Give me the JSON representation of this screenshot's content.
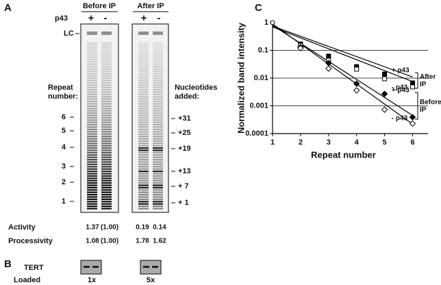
{
  "panel_a": {
    "label": "A",
    "before_ip": "Before IP",
    "after_ip": "After IP",
    "p43": "p43",
    "lanes": [
      "+",
      "-"
    ],
    "lc": "LC",
    "repeat_title": [
      "Repeat",
      "number:"
    ],
    "repeats": [
      6,
      5,
      4,
      3,
      2,
      1
    ],
    "nucleotides_title": [
      "Nucleotides",
      "added:"
    ],
    "nucleotides": [
      "+31",
      "+25",
      "+19",
      "+13",
      "+ 7",
      "+ 1"
    ],
    "rows": [
      {
        "label": "Activity",
        "values": [
          1.37,
          "(1.00)",
          0.19,
          0.14
        ]
      },
      {
        "label": "Processivity",
        "values": [
          1.08,
          "(1.00)",
          1.78,
          1.62
        ]
      }
    ]
  },
  "panel_b": {
    "label": "B",
    "tert": "TERT",
    "loaded": "Loaded",
    "amounts": [
      "1x",
      "5x"
    ]
  },
  "panel_c": {
    "label": "C"
  },
  "chart_data": {
    "type": "line",
    "y_label": "Normalized band intensity",
    "x_label": "Repeat number",
    "x": [
      2,
      3,
      4,
      5,
      6
    ],
    "xlim": [
      1,
      6.55
    ],
    "xticks": [
      1,
      2,
      3,
      4,
      5,
      6
    ],
    "ylim": [
      0.0001,
      1
    ],
    "yticks": [
      1,
      0.1,
      0.01,
      0.001,
      0.0001
    ],
    "log_y": true,
    "grid": true,
    "start_point": {
      "x": 1,
      "value": 1
    },
    "series": [
      {
        "name": "+ p43",
        "marker": "square",
        "filled": true,
        "color": "#000000",
        "values": [
          0.17,
          0.062,
          0.026,
          0.014,
          0.0067
        ],
        "trend": {
          "x": [
            1,
            6
          ],
          "values": [
            0.75,
            0.011
          ]
        }
      },
      {
        "name": "- p43",
        "marker": "square",
        "filled": false,
        "color": "#000000",
        "values": [
          0.15,
          0.044,
          0.021,
          0.0095,
          0.0048
        ],
        "trend": {
          "x": [
            1,
            6
          ],
          "values": [
            0.7,
            0.0075
          ]
        }
      },
      {
        "name": "+ p43",
        "marker": "diamond",
        "filled": true,
        "color": "#000000",
        "values": [
          0.13,
          0.035,
          0.0063,
          0.0027,
          0.00039
        ],
        "trend": {
          "x": [
            1,
            6
          ],
          "values": [
            0.8,
            0.00045
          ]
        }
      },
      {
        "name": "- p43",
        "marker": "diamond",
        "filled": false,
        "color": "#000000",
        "values": [
          0.12,
          0.022,
          0.0036,
          0.00073,
          0.00023
        ],
        "trend": {
          "x": [
            1,
            6
          ],
          "values": [
            0.9,
            0.00022
          ]
        }
      }
    ],
    "brackets": [
      [
        "After",
        "IP"
      ],
      [
        "Before",
        "IP"
      ]
    ]
  }
}
